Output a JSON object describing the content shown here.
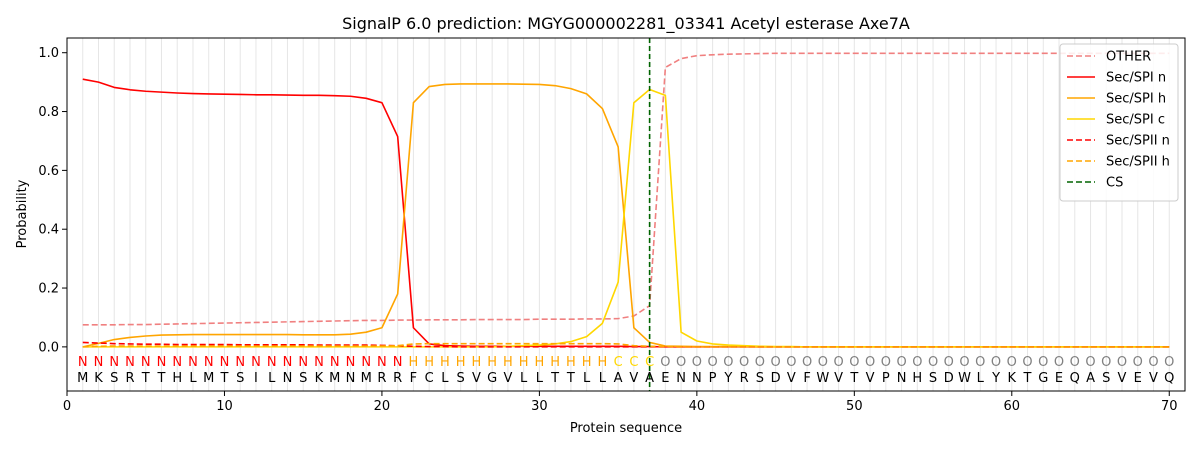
{
  "chart_data": {
    "type": "line",
    "title": "SignalP 6.0 prediction: MGYG000002281_03341 Acetyl esterase Axe7A",
    "xlabel": "Protein sequence",
    "ylabel": "Probability",
    "xlim": [
      0,
      71
    ],
    "ylim": [
      -0.15,
      1.05
    ],
    "xticks": [
      0,
      10,
      20,
      30,
      40,
      50,
      60,
      70
    ],
    "yticks": [
      0.0,
      0.2,
      0.4,
      0.6,
      0.8,
      1.0
    ],
    "xtick_labels": [
      "0",
      "10",
      "20",
      "30",
      "40",
      "50",
      "60",
      "70"
    ],
    "ytick_labels": [
      "0.0",
      "0.2",
      "0.4",
      "0.6",
      "0.8",
      "1.0"
    ],
    "grid": "vertical",
    "legend_position": "top-right",
    "sequence": [
      "M",
      "K",
      "S",
      "R",
      "T",
      "T",
      "H",
      "L",
      "M",
      "T",
      "S",
      "I",
      "L",
      "N",
      "S",
      "K",
      "M",
      "N",
      "M",
      "R",
      "R",
      "F",
      "C",
      "L",
      "S",
      "V",
      "G",
      "V",
      "L",
      "L",
      "T",
      "T",
      "L",
      "L",
      "A",
      "V",
      "A",
      "E",
      "N",
      "N",
      "P",
      "Y",
      "R",
      "S",
      "D",
      "V",
      "F",
      "W",
      "V",
      "T",
      "V",
      "P",
      "N",
      "H",
      "S",
      "D",
      "W",
      "L",
      "Y",
      "K",
      "T",
      "G",
      "E",
      "Q",
      "A",
      "S",
      "V",
      "E",
      "V",
      "Q"
    ],
    "labels": [
      "N",
      "N",
      "N",
      "N",
      "N",
      "N",
      "N",
      "N",
      "N",
      "N",
      "N",
      "N",
      "N",
      "N",
      "N",
      "N",
      "N",
      "N",
      "N",
      "N",
      "N",
      "H",
      "H",
      "H",
      "H",
      "H",
      "H",
      "H",
      "H",
      "H",
      "H",
      "H",
      "H",
      "H",
      "C",
      "C",
      "C",
      "O",
      "O",
      "O",
      "O",
      "O",
      "O",
      "O",
      "O",
      "O",
      "O",
      "O",
      "O",
      "O",
      "O",
      "O",
      "O",
      "O",
      "O",
      "O",
      "O",
      "O",
      "O",
      "O",
      "O",
      "O",
      "O",
      "O",
      "O",
      "O",
      "O",
      "O",
      "O",
      "O"
    ],
    "label_colors": {
      "N": "#ff0000",
      "H": "#ffa500",
      "C": "#ffd700",
      "O": "#808080"
    },
    "cs_position": 37,
    "series": [
      {
        "name": "OTHER",
        "color": "#f08080",
        "style": "dashed",
        "values": [
          0.075,
          0.075,
          0.075,
          0.076,
          0.076,
          0.077,
          0.078,
          0.079,
          0.08,
          0.081,
          0.082,
          0.083,
          0.084,
          0.085,
          0.086,
          0.087,
          0.088,
          0.089,
          0.09,
          0.09,
          0.091,
          0.091,
          0.092,
          0.092,
          0.092,
          0.093,
          0.093,
          0.093,
          0.093,
          0.094,
          0.094,
          0.094,
          0.095,
          0.095,
          0.096,
          0.105,
          0.14,
          0.95,
          0.98,
          0.99,
          0.993,
          0.995,
          0.996,
          0.997,
          0.998,
          0.998,
          0.998,
          0.998,
          0.998,
          0.998,
          0.998,
          0.998,
          0.998,
          0.998,
          0.998,
          0.998,
          0.998,
          0.998,
          0.998,
          0.998,
          0.998,
          0.998,
          0.998,
          0.998,
          0.998,
          0.998,
          0.998,
          0.998,
          0.998,
          0.998
        ]
      },
      {
        "name": "Sec/SPI n",
        "color": "#ff0000",
        "style": "solid",
        "values": [
          0.91,
          0.9,
          0.882,
          0.874,
          0.869,
          0.866,
          0.863,
          0.861,
          0.86,
          0.859,
          0.858,
          0.857,
          0.857,
          0.856,
          0.855,
          0.855,
          0.854,
          0.852,
          0.845,
          0.83,
          0.715,
          0.065,
          0.01,
          0.004,
          0.003,
          0.002,
          0.002,
          0.002,
          0.002,
          0.002,
          0.002,
          0.002,
          0.002,
          0.002,
          0.002,
          0.001,
          0.001,
          0.0,
          0.0,
          0.0,
          0.0,
          0.0,
          0.0,
          0.0,
          0.0,
          0.0,
          0.0,
          0.0,
          0.0,
          0.0,
          0.0,
          0.0,
          0.0,
          0.0,
          0.0,
          0.0,
          0.0,
          0.0,
          0.0,
          0.0,
          0.0,
          0.0,
          0.0,
          0.0,
          0.0,
          0.0,
          0.0,
          0.0,
          0.0,
          0.0
        ]
      },
      {
        "name": "Sec/SPI h",
        "color": "#ffa500",
        "style": "solid",
        "values": [
          0.0,
          0.012,
          0.025,
          0.032,
          0.037,
          0.04,
          0.041,
          0.042,
          0.042,
          0.042,
          0.042,
          0.042,
          0.042,
          0.042,
          0.041,
          0.041,
          0.041,
          0.043,
          0.05,
          0.065,
          0.18,
          0.83,
          0.885,
          0.892,
          0.894,
          0.894,
          0.894,
          0.894,
          0.893,
          0.892,
          0.888,
          0.878,
          0.86,
          0.81,
          0.68,
          0.065,
          0.015,
          0.003,
          0.002,
          0.001,
          0.001,
          0.001,
          0.001,
          0.0,
          0.0,
          0.0,
          0.0,
          0.0,
          0.0,
          0.0,
          0.0,
          0.0,
          0.0,
          0.0,
          0.0,
          0.0,
          0.0,
          0.0,
          0.0,
          0.0,
          0.0,
          0.0,
          0.0,
          0.0,
          0.0,
          0.0,
          0.0,
          0.0,
          0.0,
          0.0
        ]
      },
      {
        "name": "Sec/SPI c",
        "color": "#ffd700",
        "style": "solid",
        "values": [
          0.0,
          0.0,
          0.0,
          0.0,
          0.0,
          0.0,
          0.0,
          0.0,
          0.0,
          0.0,
          0.0,
          0.0,
          0.0,
          0.0,
          0.0,
          0.0,
          0.0,
          0.0,
          0.0,
          0.0,
          0.0,
          0.0,
          0.0,
          0.0,
          0.0,
          0.0,
          0.0,
          0.002,
          0.004,
          0.006,
          0.01,
          0.018,
          0.035,
          0.08,
          0.22,
          0.83,
          0.875,
          0.855,
          0.05,
          0.02,
          0.01,
          0.006,
          0.004,
          0.002,
          0.001,
          0.001,
          0.0,
          0.0,
          0.0,
          0.0,
          0.0,
          0.0,
          0.0,
          0.0,
          0.0,
          0.0,
          0.0,
          0.0,
          0.0,
          0.0,
          0.0,
          0.0,
          0.0,
          0.0,
          0.0,
          0.0,
          0.0,
          0.0,
          0.0,
          0.0
        ]
      },
      {
        "name": "Sec/SPII n",
        "color": "#ff0000",
        "style": "dashed",
        "values": [
          0.015,
          0.013,
          0.011,
          0.01,
          0.009,
          0.009,
          0.008,
          0.008,
          0.008,
          0.008,
          0.007,
          0.007,
          0.007,
          0.007,
          0.007,
          0.006,
          0.006,
          0.006,
          0.006,
          0.005,
          0.004,
          0.002,
          0.001,
          0.001,
          0.0,
          0.0,
          0.0,
          0.0,
          0.0,
          0.0,
          0.0,
          0.0,
          0.0,
          0.0,
          0.0,
          0.0,
          0.0,
          0.0,
          0.0,
          0.0,
          0.0,
          0.0,
          0.0,
          0.0,
          0.0,
          0.0,
          0.0,
          0.0,
          0.0,
          0.0,
          0.0,
          0.0,
          0.0,
          0.0,
          0.0,
          0.0,
          0.0,
          0.0,
          0.0,
          0.0,
          0.0,
          0.0,
          0.0,
          0.0,
          0.0,
          0.0,
          0.0,
          0.0,
          0.0,
          0.0
        ]
      },
      {
        "name": "Sec/SPII h",
        "color": "#ffa500",
        "style": "dashed",
        "values": [
          0.0,
          0.002,
          0.003,
          0.003,
          0.003,
          0.003,
          0.003,
          0.003,
          0.003,
          0.003,
          0.003,
          0.003,
          0.003,
          0.003,
          0.003,
          0.003,
          0.003,
          0.003,
          0.003,
          0.003,
          0.004,
          0.01,
          0.011,
          0.011,
          0.011,
          0.011,
          0.011,
          0.011,
          0.011,
          0.011,
          0.011,
          0.011,
          0.011,
          0.011,
          0.01,
          0.004,
          0.002,
          0.001,
          0.0,
          0.0,
          0.0,
          0.0,
          0.0,
          0.0,
          0.0,
          0.0,
          0.0,
          0.0,
          0.0,
          0.0,
          0.0,
          0.0,
          0.0,
          0.0,
          0.0,
          0.0,
          0.0,
          0.0,
          0.0,
          0.0,
          0.0,
          0.0,
          0.0,
          0.0,
          0.0,
          0.0,
          0.0,
          0.0,
          0.0,
          0.0
        ]
      }
    ],
    "legend": [
      {
        "name": "OTHER",
        "color": "#f08080",
        "style": "dashed"
      },
      {
        "name": "Sec/SPI n",
        "color": "#ff0000",
        "style": "solid"
      },
      {
        "name": "Sec/SPI h",
        "color": "#ffa500",
        "style": "solid"
      },
      {
        "name": "Sec/SPI c",
        "color": "#ffd700",
        "style": "solid"
      },
      {
        "name": "Sec/SPII n",
        "color": "#ff0000",
        "style": "dashed"
      },
      {
        "name": "Sec/SPII h",
        "color": "#ffa500",
        "style": "dashed"
      },
      {
        "name": "CS",
        "color": "#006400",
        "style": "dashed"
      }
    ]
  }
}
